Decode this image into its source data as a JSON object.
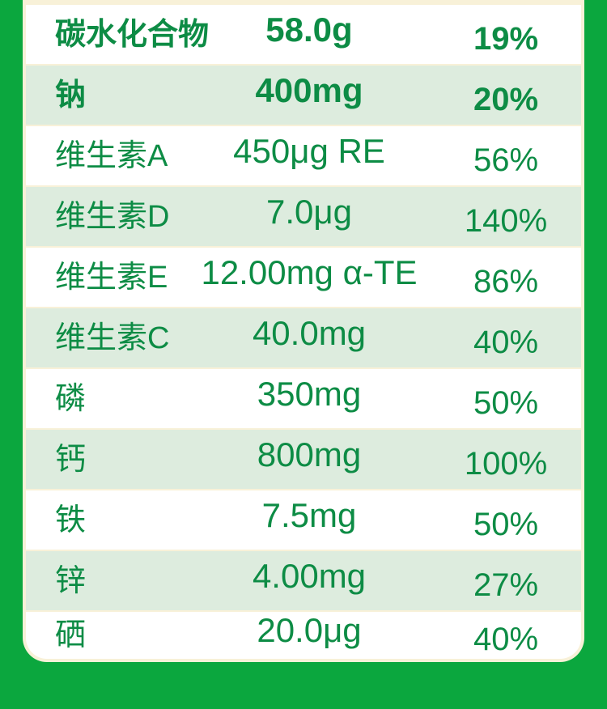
{
  "meta": {
    "description_colors": {
      "background_green": "#0ba73e",
      "panel_cream": "#f8f1d8",
      "row_white": "#ffffff",
      "row_light_green": "#ddecde",
      "text_green": "#0d8c45"
    }
  },
  "table": {
    "rows": [
      {
        "label": "碳水化合物",
        "value": "58.0g",
        "nrv": "19%"
      },
      {
        "label": "钠",
        "value": "400mg",
        "nrv": "20%"
      },
      {
        "label": "维生素A",
        "value": "450μg RE",
        "nrv": "56%"
      },
      {
        "label": "维生素D",
        "value": "7.0μg",
        "nrv": "140%"
      },
      {
        "label": "维生素E",
        "value": "12.00mg α-TE",
        "nrv": "86%"
      },
      {
        "label": "维生素C",
        "value": "40.0mg",
        "nrv": "40%"
      },
      {
        "label": "磷",
        "value": "350mg",
        "nrv": "50%"
      },
      {
        "label": "钙",
        "value": "800mg",
        "nrv": "100%"
      },
      {
        "label": "铁",
        "value": "7.5mg",
        "nrv": "50%"
      },
      {
        "label": "锌",
        "value": "4.00mg",
        "nrv": "27%"
      },
      {
        "label": "硒",
        "value": "20.0μg",
        "nrv": "40%"
      }
    ]
  }
}
